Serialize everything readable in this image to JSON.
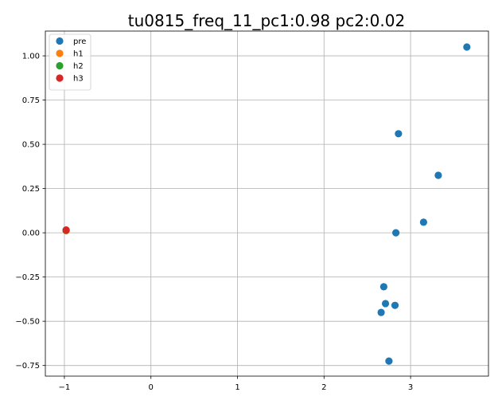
{
  "chart_data": {
    "type": "scatter",
    "title": "tu0815_freq_11_pc1:0.98 pc2:0.02",
    "xlabel": "",
    "ylabel": "",
    "xlim": [
      -1.22,
      3.9
    ],
    "ylim": [
      -0.81,
      1.14
    ],
    "xticks": [
      -1,
      0,
      1,
      2,
      3
    ],
    "xtick_labels": [
      "−1",
      "0",
      "1",
      "2",
      "3"
    ],
    "yticks": [
      -0.75,
      -0.5,
      -0.25,
      0.0,
      0.25,
      0.5,
      0.75,
      1.0
    ],
    "ytick_labels": [
      "−0.75",
      "−0.50",
      "−0.25",
      "0.00",
      "0.25",
      "0.50",
      "0.75",
      "1.00"
    ],
    "grid": true,
    "legend_position": "upper-left",
    "series": [
      {
        "name": "pre",
        "color": "#1f77b4",
        "points": [
          [
            3.65,
            1.05
          ],
          [
            2.86,
            0.56
          ],
          [
            3.32,
            0.325
          ],
          [
            3.15,
            0.06
          ],
          [
            2.83,
            0.0
          ],
          [
            2.69,
            -0.305
          ],
          [
            2.71,
            -0.4
          ],
          [
            2.82,
            -0.41
          ],
          [
            2.66,
            -0.45
          ],
          [
            2.75,
            -0.725
          ]
        ]
      },
      {
        "name": "h1",
        "color": "#ff7f0e",
        "points": [
          [
            -0.98,
            0.012
          ]
        ]
      },
      {
        "name": "h2",
        "color": "#2ca02c",
        "points": [
          [
            -0.98,
            0.014
          ]
        ]
      },
      {
        "name": "h3",
        "color": "#d62728",
        "points": [
          [
            -0.98,
            0.016
          ]
        ]
      }
    ]
  }
}
